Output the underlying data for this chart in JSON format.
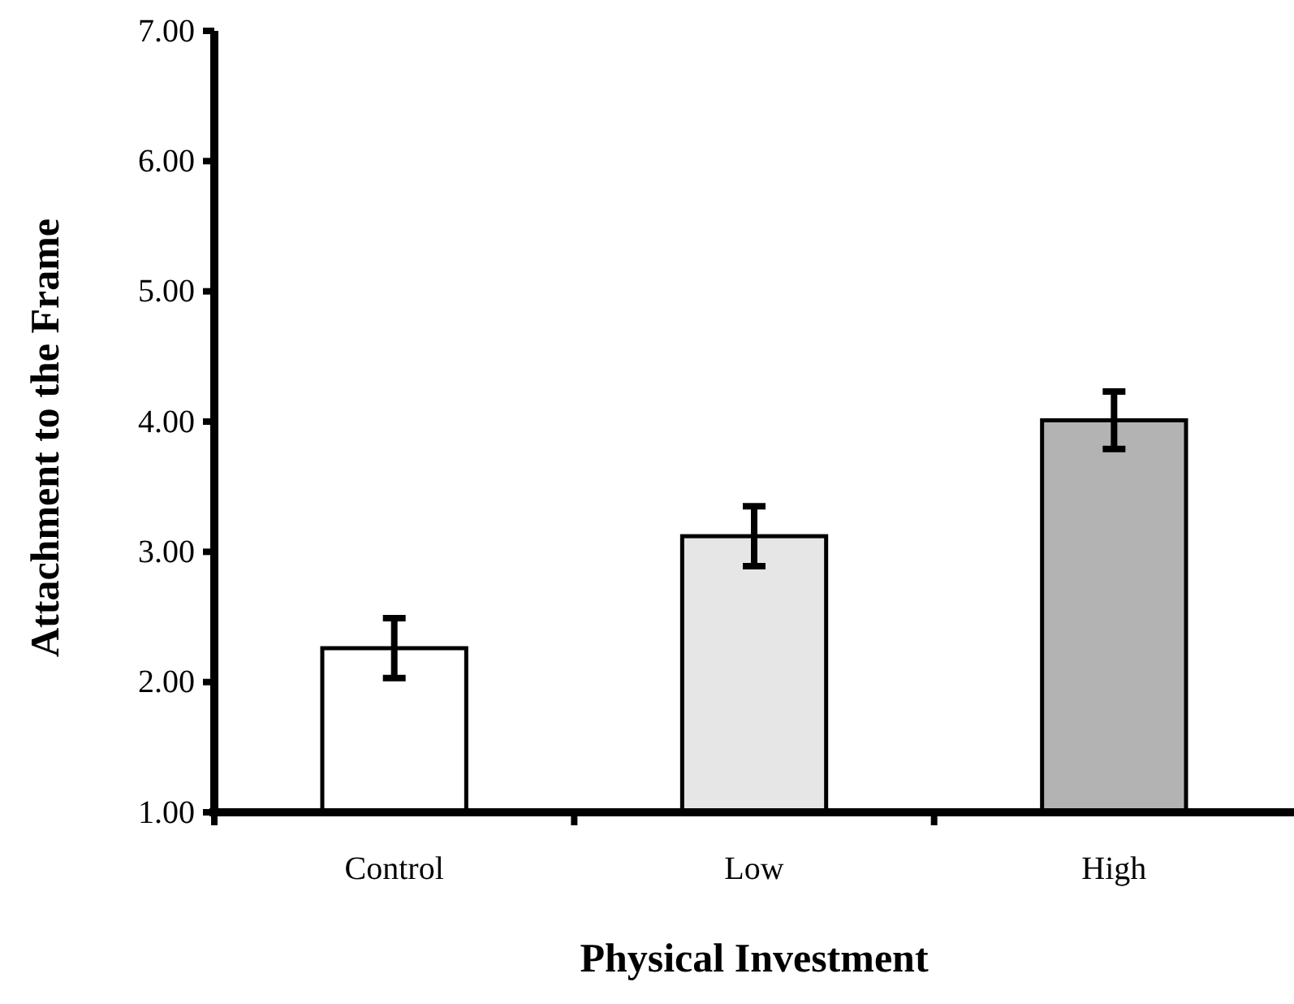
{
  "chart_data": {
    "type": "bar",
    "xlabel": "Physical Investment",
    "ylabel": "Attachment to the Frame",
    "categories": [
      "Control",
      "Low",
      "High"
    ],
    "values": [
      2.26,
      3.12,
      4.01
    ],
    "errors": [
      0.23,
      0.23,
      0.22
    ],
    "colors": [
      "#ffffff",
      "#e6e6e6",
      "#b3b3b3"
    ],
    "ylim": [
      1,
      7
    ],
    "yticks": [
      {
        "value": 1,
        "label": "1.00"
      },
      {
        "value": 2,
        "label": "2.00"
      },
      {
        "value": 3,
        "label": "3.00"
      },
      {
        "value": 4,
        "label": "4.00"
      },
      {
        "value": 5,
        "label": "5.00"
      },
      {
        "value": 6,
        "label": "6.00"
      },
      {
        "value": 7,
        "label": "7.00"
      }
    ],
    "grid": false
  }
}
